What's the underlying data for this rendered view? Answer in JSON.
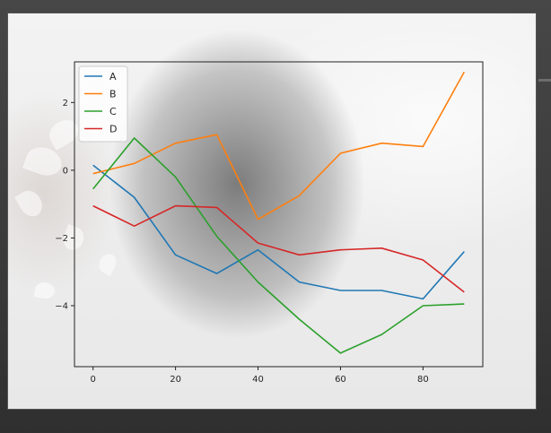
{
  "chart_data": {
    "type": "line",
    "title": "",
    "xlabel": "",
    "ylabel": "",
    "x": [
      0,
      10,
      20,
      30,
      40,
      50,
      60,
      70,
      80,
      90
    ],
    "xlim": [
      -4.5,
      94.5
    ],
    "ylim": [
      -5.8,
      3.2
    ],
    "xticks": [
      0,
      20,
      40,
      60,
      80
    ],
    "yticks": [
      -4,
      -2,
      0,
      2
    ],
    "xtick_labels": [
      "0",
      "20",
      "40",
      "60",
      "80"
    ],
    "ytick_labels": [
      "−4",
      "−2",
      "0",
      "2"
    ],
    "grid": false,
    "legend_position": "upper-left",
    "series": [
      {
        "name": "A",
        "color": "#1f77b4",
        "values": [
          0.15,
          -0.8,
          -2.5,
          -3.05,
          -2.35,
          -3.3,
          -3.55,
          -3.55,
          -3.8,
          -2.4
        ]
      },
      {
        "name": "B",
        "color": "#ff7f0e",
        "values": [
          -0.1,
          0.2,
          0.8,
          1.05,
          -1.45,
          -0.75,
          0.5,
          0.8,
          0.7,
          2.9
        ]
      },
      {
        "name": "C",
        "color": "#2ca02c",
        "values": [
          -0.55,
          0.95,
          -0.2,
          -1.95,
          -3.3,
          -4.4,
          -5.4,
          -4.85,
          -4.0,
          -3.95
        ]
      },
      {
        "name": "D",
        "color": "#d62728",
        "values": [
          -1.05,
          -1.65,
          -1.05,
          -1.1,
          -2.15,
          -2.5,
          -2.35,
          -2.3,
          -2.65,
          -3.6
        ]
      }
    ]
  }
}
